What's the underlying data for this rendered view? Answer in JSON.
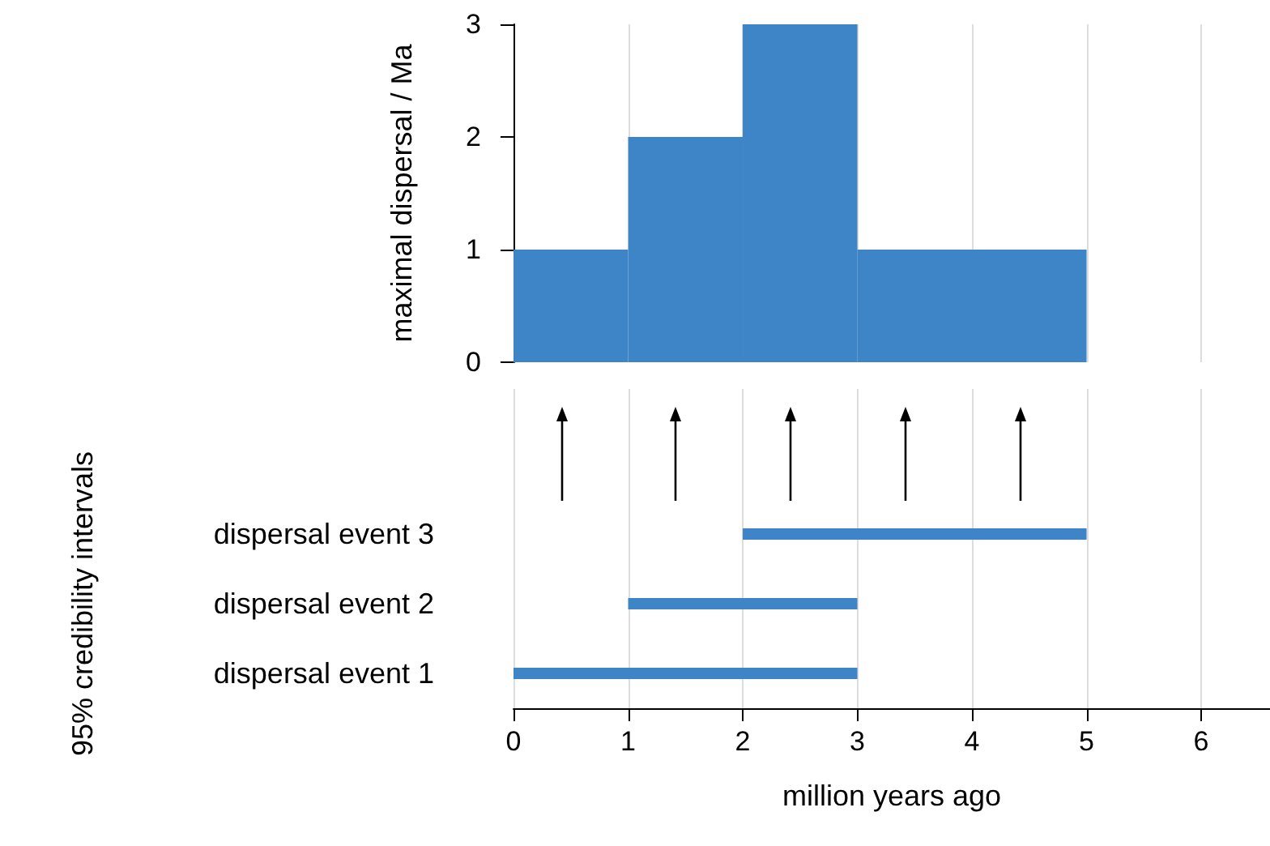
{
  "chart_data": [
    {
      "type": "histogram",
      "ylabel": "maximal dispersal / Ma",
      "bins": [
        0,
        1,
        2,
        3,
        5
      ],
      "values": [
        1,
        2,
        3,
        1
      ],
      "color": "#3d85c6",
      "xlim": [
        0,
        6.6
      ],
      "xticks": [
        0,
        1,
        2,
        3,
        4,
        5,
        6
      ],
      "ylim": [
        0,
        3
      ],
      "yticks": [
        0,
        1,
        2,
        3
      ],
      "grid": "x",
      "tick_labels": "y"
    },
    {
      "type": "bar",
      "orientation": "horizontal",
      "xlabel": "million years ago",
      "ylabel": "95% credibility intervals",
      "categories": [
        "dispersal event 3",
        "dispersal event 2",
        "dispersal event 1"
      ],
      "base": [
        2,
        1,
        0
      ],
      "values": [
        3,
        2,
        3
      ],
      "color": "#3d85c6",
      "xlim": [
        0,
        6.6
      ],
      "xticks": [
        0,
        1,
        2,
        3,
        4,
        5,
        6
      ],
      "grid": "x",
      "tick_labels": "x"
    }
  ]
}
